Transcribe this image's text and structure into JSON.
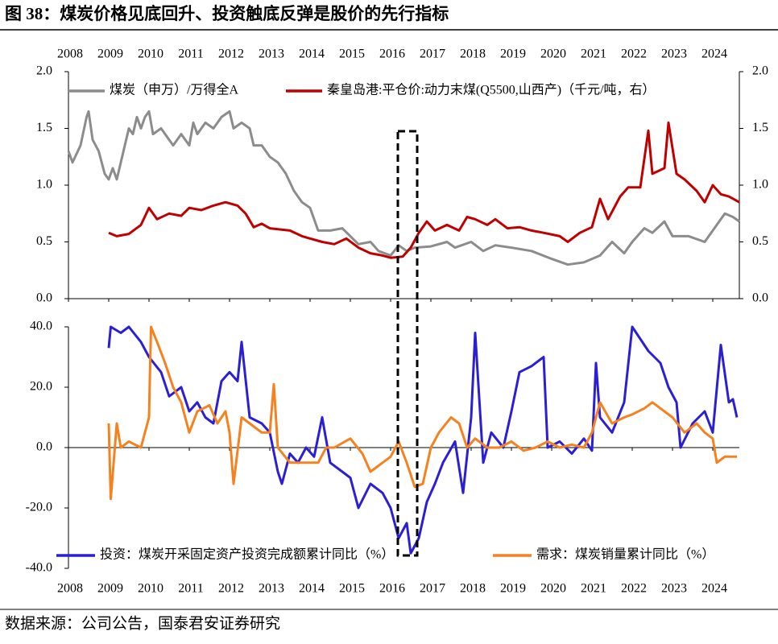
{
  "title": "图 38：煤炭价格见底回升、投资触底反弹是股价的先行指标",
  "source": "数据来源：公司公告，国泰君安证券研究",
  "chart_data": [
    {
      "type": "line",
      "xlim": [
        2008,
        2024.66
      ],
      "xticks": [
        2008,
        2009,
        2010,
        2011,
        2012,
        2013,
        2014,
        2015,
        2016,
        2017,
        2018,
        2019,
        2020,
        2021,
        2022,
        2023,
        2024
      ],
      "ylim": [
        0,
        2
      ],
      "yticks": [
        {
          "value": 0,
          "label": "0.0"
        },
        {
          "value": 0.5,
          "label": "0.5"
        },
        {
          "value": 1,
          "label": "1.0"
        },
        {
          "value": 1.5,
          "label": "1.5"
        },
        {
          "value": 2,
          "label": "2.0"
        }
      ],
      "y2lim": [
        0,
        2
      ],
      "y2ticks": [
        {
          "value": 0,
          "label": "0.0"
        },
        {
          "value": 0.5,
          "label": "0.5"
        },
        {
          "value": 1,
          "label": "1.0"
        },
        {
          "value": 1.5,
          "label": "1.5"
        },
        {
          "value": 2,
          "label": "2.0"
        }
      ],
      "series": [
        {
          "name": "煤炭（申万）/万得全A",
          "color": "#8c8c8c",
          "x": [
            2008.0,
            2008.1,
            2008.3,
            2008.45,
            2008.5,
            2008.6,
            2008.75,
            2008.9,
            2009.0,
            2009.1,
            2009.2,
            2009.4,
            2009.5,
            2009.6,
            2009.7,
            2009.8,
            2009.9,
            2010.0,
            2010.1,
            2010.3,
            2010.5,
            2010.6,
            2010.8,
            2011.0,
            2011.1,
            2011.2,
            2011.4,
            2011.6,
            2011.8,
            2012.0,
            2012.1,
            2012.3,
            2012.5,
            2012.6,
            2012.8,
            2013.0,
            2013.2,
            2013.4,
            2013.6,
            2013.8,
            2014.0,
            2014.1,
            2014.2,
            2014.5,
            2014.8,
            2015.0,
            2015.2,
            2015.5,
            2015.7,
            2016.0,
            2016.2,
            2016.4,
            2016.6,
            2017.0,
            2017.4,
            2017.6,
            2018.0,
            2018.3,
            2018.6,
            2019.0,
            2019.5,
            2020.0,
            2020.4,
            2020.8,
            2021.2,
            2021.5,
            2021.8,
            2022.0,
            2022.3,
            2022.5,
            2022.8,
            2023.0,
            2023.4,
            2023.8,
            2024.0,
            2024.3,
            2024.5,
            2024.66
          ],
          "values": [
            1.3,
            1.2,
            1.35,
            1.6,
            1.65,
            1.4,
            1.3,
            1.1,
            1.05,
            1.15,
            1.05,
            1.35,
            1.5,
            1.45,
            1.6,
            1.5,
            1.6,
            1.65,
            1.45,
            1.5,
            1.4,
            1.35,
            1.45,
            1.35,
            1.55,
            1.45,
            1.55,
            1.5,
            1.6,
            1.65,
            1.5,
            1.55,
            1.5,
            1.35,
            1.35,
            1.25,
            1.2,
            1.1,
            0.95,
            0.85,
            0.8,
            0.7,
            0.6,
            0.6,
            0.62,
            0.55,
            0.48,
            0.5,
            0.42,
            0.38,
            0.47,
            0.42,
            0.45,
            0.46,
            0.5,
            0.45,
            0.5,
            0.42,
            0.47,
            0.45,
            0.42,
            0.35,
            0.3,
            0.32,
            0.38,
            0.5,
            0.4,
            0.5,
            0.62,
            0.58,
            0.68,
            0.55,
            0.55,
            0.5,
            0.6,
            0.75,
            0.72,
            0.68
          ]
        },
        {
          "name": "秦皇岛港:平仓价:动力末煤(Q5500,山西产)（千元/吨，右）",
          "color": "#c00000",
          "axis": "y2",
          "x": [
            2009.0,
            2009.2,
            2009.5,
            2009.8,
            2010.0,
            2010.2,
            2010.5,
            2010.8,
            2011.0,
            2011.3,
            2011.6,
            2011.9,
            2012.2,
            2012.4,
            2012.6,
            2012.8,
            2013.0,
            2013.5,
            2013.8,
            2014.0,
            2014.3,
            2014.6,
            2014.9,
            2015.2,
            2015.5,
            2015.8,
            2016.0,
            2016.3,
            2016.5,
            2016.7,
            2016.9,
            2017.1,
            2017.4,
            2017.7,
            2017.9,
            2018.1,
            2018.4,
            2018.6,
            2018.9,
            2019.2,
            2019.5,
            2019.8,
            2020.2,
            2020.4,
            2020.7,
            2021.0,
            2021.2,
            2021.4,
            2021.7,
            2021.9,
            2022.2,
            2022.4,
            2022.5,
            2022.8,
            2022.9,
            2023.1,
            2023.3,
            2023.6,
            2023.8,
            2024.0,
            2024.2,
            2024.4,
            2024.66
          ],
          "values": [
            0.58,
            0.55,
            0.57,
            0.65,
            0.8,
            0.7,
            0.75,
            0.73,
            0.8,
            0.78,
            0.82,
            0.85,
            0.82,
            0.75,
            0.63,
            0.66,
            0.62,
            0.6,
            0.55,
            0.53,
            0.5,
            0.48,
            0.53,
            0.45,
            0.4,
            0.38,
            0.36,
            0.37,
            0.45,
            0.58,
            0.68,
            0.6,
            0.65,
            0.6,
            0.72,
            0.7,
            0.65,
            0.7,
            0.62,
            0.63,
            0.6,
            0.58,
            0.55,
            0.5,
            0.58,
            0.63,
            0.88,
            0.7,
            0.9,
            0.98,
            0.98,
            1.48,
            1.1,
            1.15,
            1.55,
            1.1,
            1.05,
            0.95,
            0.85,
            1.0,
            0.92,
            0.9,
            0.85
          ]
        }
      ]
    },
    {
      "type": "line",
      "xlim": [
        2008,
        2024.66
      ],
      "xticks": [
        2008,
        2009,
        2010,
        2011,
        2012,
        2013,
        2014,
        2015,
        2016,
        2017,
        2018,
        2019,
        2020,
        2021,
        2022,
        2023,
        2024
      ],
      "ylim": [
        -40,
        40
      ],
      "yticks": [
        {
          "value": -40,
          "label": "-40.0"
        },
        {
          "value": -20,
          "label": "-20.0"
        },
        {
          "value": 0,
          "label": "0.0"
        },
        {
          "value": 20,
          "label": "20.0"
        },
        {
          "value": 40,
          "label": "40.0"
        }
      ],
      "series": [
        {
          "name": "投资：煤炭开采固定资产投资完成额累计同比（%）",
          "color": "#2b1fd6",
          "x": [
            2009.0,
            2009.05,
            2009.3,
            2009.5,
            2009.8,
            2010.0,
            2010.3,
            2010.5,
            2010.8,
            2011.0,
            2011.2,
            2011.4,
            2011.6,
            2011.8,
            2012.0,
            2012.2,
            2012.3,
            2012.5,
            2012.8,
            2013.0,
            2013.2,
            2013.3,
            2013.5,
            2013.7,
            2013.9,
            2014.1,
            2014.3,
            2014.5,
            2014.8,
            2015.0,
            2015.2,
            2015.5,
            2015.8,
            2016.0,
            2016.2,
            2016.4,
            2016.5,
            2016.7,
            2016.9,
            2017.1,
            2017.3,
            2017.6,
            2017.8,
            2018.0,
            2018.1,
            2018.3,
            2018.5,
            2018.8,
            2019.0,
            2019.2,
            2019.5,
            2019.8,
            2019.9,
            2020.2,
            2020.5,
            2020.8,
            2021.0,
            2021.1,
            2021.2,
            2021.5,
            2021.8,
            2022.0,
            2022.4,
            2022.7,
            2022.9,
            2023.1,
            2023.2,
            2023.5,
            2023.8,
            2024.0,
            2024.2,
            2024.4,
            2024.5,
            2024.6
          ],
          "values": [
            33,
            40,
            38,
            40,
            35,
            30,
            25,
            17,
            20,
            12,
            15,
            10,
            8,
            22,
            25,
            22,
            35,
            10,
            8,
            5,
            -8,
            -12,
            -2,
            -5,
            0,
            -3,
            10,
            -5,
            -8,
            -10,
            -20,
            -12,
            -15,
            -20,
            -30,
            -25,
            -35,
            -30,
            -18,
            -12,
            -5,
            2,
            -15,
            10,
            38,
            -5,
            5,
            0,
            12,
            25,
            27,
            30,
            0,
            2,
            -2,
            3,
            -1,
            28,
            10,
            5,
            15,
            40,
            32,
            28,
            20,
            15,
            0,
            8,
            12,
            5,
            34,
            15,
            16,
            10
          ]
        },
        {
          "name": "需求：煤炭销量累计同比（%）",
          "color": "#f5821f",
          "x": [
            2009.0,
            2009.05,
            2009.2,
            2009.3,
            2009.5,
            2009.8,
            2010.0,
            2010.05,
            2010.2,
            2010.4,
            2010.6,
            2010.8,
            2011.0,
            2011.2,
            2011.5,
            2011.7,
            2011.9,
            2012.0,
            2012.1,
            2012.3,
            2012.5,
            2012.8,
            2013.0,
            2013.1,
            2013.2,
            2013.5,
            2013.8,
            2014.2,
            2014.4,
            2014.6,
            2015.0,
            2015.3,
            2015.5,
            2015.8,
            2016.0,
            2016.2,
            2016.4,
            2016.6,
            2016.8,
            2017.0,
            2017.2,
            2017.5,
            2017.7,
            2017.9,
            2018.1,
            2018.4,
            2018.7,
            2019.0,
            2019.3,
            2019.6,
            2019.9,
            2020.2,
            2020.5,
            2020.8,
            2021.0,
            2021.2,
            2021.5,
            2021.8,
            2022.0,
            2022.3,
            2022.5,
            2022.8,
            2023.0,
            2023.3,
            2023.6,
            2023.8,
            2024.0,
            2024.1,
            2024.3,
            2024.6
          ],
          "values": [
            8,
            -17,
            8,
            0,
            2,
            0,
            10,
            40,
            35,
            28,
            20,
            15,
            5,
            12,
            14,
            8,
            12,
            5,
            -12,
            10,
            8,
            5,
            5,
            21,
            0,
            -5,
            -5,
            -5,
            0,
            0,
            3,
            -2,
            -8,
            -5,
            -3,
            2,
            -5,
            -13,
            -12,
            0,
            5,
            10,
            8,
            0,
            3,
            0,
            0,
            2,
            -1,
            0,
            2,
            0,
            1,
            0,
            5,
            15,
            8,
            10,
            11,
            13,
            15,
            12,
            10,
            5,
            8,
            5,
            3,
            -5,
            -3,
            -3
          ]
        }
      ]
    }
  ]
}
